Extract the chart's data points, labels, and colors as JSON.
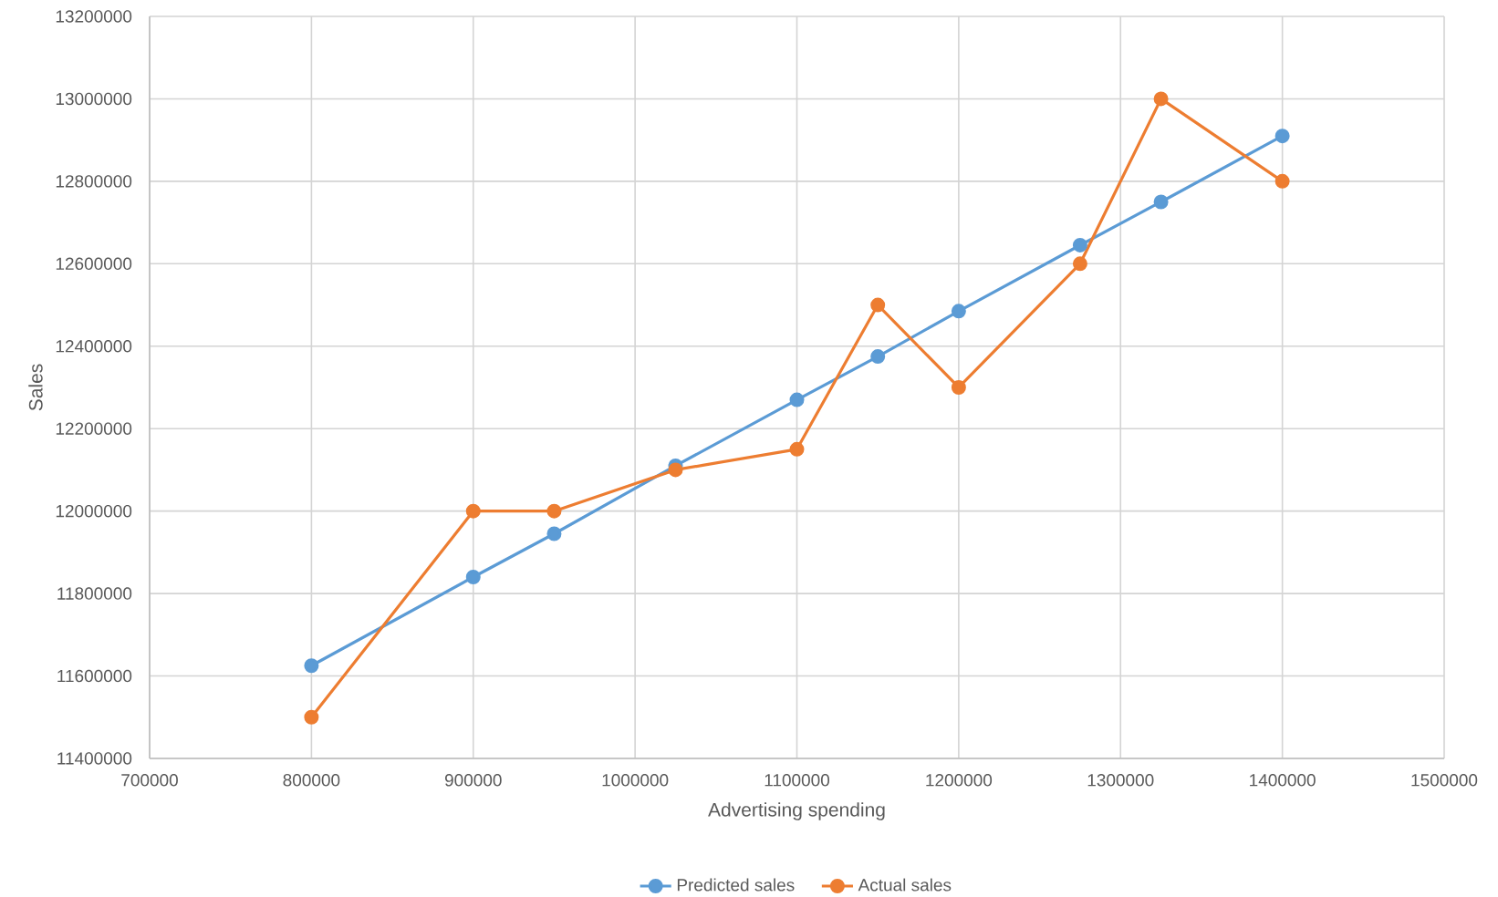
{
  "chart_data": {
    "type": "line",
    "xlabel": "Advertising spending",
    "ylabel": "Sales",
    "x": [
      800000,
      900000,
      950000,
      1025000,
      1100000,
      1150000,
      1200000,
      1275000,
      1325000,
      1400000
    ],
    "series": [
      {
        "name": "Predicted sales",
        "color": "#5b9bd5",
        "values": [
          11625000,
          11840000,
          11945000,
          12110000,
          12270000,
          12375000,
          12485000,
          12645000,
          12750000,
          12910000
        ]
      },
      {
        "name": "Actual sales",
        "color": "#ed7d31",
        "values": [
          11500000,
          12000000,
          12000000,
          12100000,
          12150000,
          12500000,
          12300000,
          12600000,
          13000000,
          12800000
        ]
      }
    ],
    "xlim": [
      700000,
      1500000
    ],
    "xticks": [
      700000,
      800000,
      900000,
      1000000,
      1100000,
      1200000,
      1300000,
      1400000,
      1500000
    ],
    "ylim": [
      11400000,
      13200000
    ],
    "yticks": [
      11400000,
      11600000,
      11800000,
      12000000,
      12200000,
      12400000,
      12600000,
      12800000,
      13000000,
      13200000
    ],
    "grid": true,
    "legend": "bottom",
    "marker": "circle",
    "line_style": "solid"
  }
}
